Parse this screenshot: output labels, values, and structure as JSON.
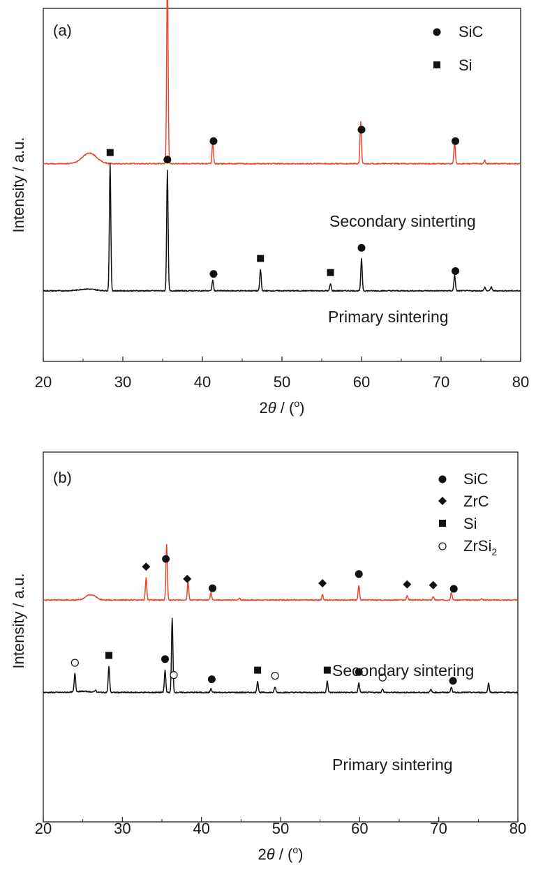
{
  "colors": {
    "secondary": "#e8472e",
    "primary": "#111111",
    "axis": "#1a1a1a"
  },
  "chart_data": [
    {
      "type": "line",
      "panel_label": "(a)",
      "xlabel_prefix": "2",
      "xlabel_symbol": "θ",
      "xlabel_suffix": " / (",
      "xlabel_unit": "o",
      "xlabel_close": ")",
      "ylabel": "Intensity / a.u.",
      "xlim": [
        20,
        80
      ],
      "xticks": [
        "20",
        "30",
        "40",
        "50",
        "60",
        "70",
        "80"
      ],
      "legend": [
        {
          "marker": "filled-circle",
          "label": "SiC"
        },
        {
          "marker": "filled-square",
          "label": "Si"
        }
      ],
      "series": [
        {
          "name": "Secondary sinterting",
          "color": "#e8472e",
          "baseline": 0.56,
          "bump": {
            "x": 25.8,
            "height": 0.03,
            "width": 0.9
          },
          "peaks": [
            {
              "x": 35.6,
              "height": 0.54
            },
            {
              "x": 41.3,
              "height": 0.06
            },
            {
              "x": 59.9,
              "height": 0.12
            },
            {
              "x": 71.7,
              "height": 0.06
            },
            {
              "x": 75.5,
              "height": 0.01
            }
          ],
          "markers": [
            {
              "x": 35.6,
              "marker": "filled-circle"
            },
            {
              "x": 41.4,
              "marker": "filled-circle"
            },
            {
              "x": 60.0,
              "marker": "filled-circle"
            },
            {
              "x": 71.8,
              "marker": "filled-circle"
            }
          ]
        },
        {
          "name": "Primary sintering",
          "color": "#111111",
          "baseline": 0.2,
          "bump": {
            "x": 25.5,
            "height": 0.005,
            "width": 1.0
          },
          "peaks": [
            {
              "x": 28.4,
              "height": 0.36
            },
            {
              "x": 35.6,
              "height": 0.34
            },
            {
              "x": 41.3,
              "height": 0.03
            },
            {
              "x": 47.3,
              "height": 0.06
            },
            {
              "x": 56.1,
              "height": 0.02
            },
            {
              "x": 60.0,
              "height": 0.09
            },
            {
              "x": 71.7,
              "height": 0.045
            },
            {
              "x": 75.5,
              "height": 0.01
            },
            {
              "x": 76.3,
              "height": 0.012
            }
          ],
          "markers": [
            {
              "x": 28.4,
              "marker": "filled-square"
            },
            {
              "x": 35.6,
              "marker": "filled-circle"
            },
            {
              "x": 41.4,
              "marker": "filled-circle"
            },
            {
              "x": 47.3,
              "marker": "filled-square"
            },
            {
              "x": 56.1,
              "marker": "filled-square"
            },
            {
              "x": 60.0,
              "marker": "filled-circle"
            },
            {
              "x": 71.8,
              "marker": "filled-circle"
            }
          ]
        }
      ]
    },
    {
      "type": "line",
      "panel_label": "(b)",
      "xlabel_prefix": "2",
      "xlabel_symbol": "θ",
      "xlabel_suffix": " / (",
      "xlabel_unit": "o",
      "xlabel_close": ")",
      "ylabel": "Intensity / a.u.",
      "xlim": [
        20,
        80
      ],
      "xticks": [
        "20",
        "30",
        "40",
        "50",
        "60",
        "70",
        "80"
      ],
      "legend": [
        {
          "marker": "filled-circle",
          "label": "SiC"
        },
        {
          "marker": "filled-diamond",
          "label": "ZrC"
        },
        {
          "marker": "filled-square",
          "label": "Si"
        },
        {
          "marker": "open-circle",
          "label": "ZrSi",
          "sub": "2"
        }
      ],
      "series": [
        {
          "name": "Secondary sintering",
          "color": "#e8472e",
          "baseline": 0.6,
          "bump": {
            "x": 26.0,
            "height": 0.015,
            "width": 0.6
          },
          "peaks": [
            {
              "x": 33.0,
              "height": 0.06
            },
            {
              "x": 35.6,
              "height": 0.15
            },
            {
              "x": 38.3,
              "height": 0.05
            },
            {
              "x": 41.2,
              "height": 0.02
            },
            {
              "x": 44.8,
              "height": 0.005
            },
            {
              "x": 55.3,
              "height": 0.015
            },
            {
              "x": 59.9,
              "height": 0.04
            },
            {
              "x": 66.0,
              "height": 0.012
            },
            {
              "x": 69.3,
              "height": 0.01
            },
            {
              "x": 71.6,
              "height": 0.02
            },
            {
              "x": 75.4,
              "height": 0.005
            }
          ],
          "markers": [
            {
              "x": 33.0,
              "marker": "filled-diamond"
            },
            {
              "x": 35.5,
              "marker": "filled-circle"
            },
            {
              "x": 38.2,
              "marker": "filled-diamond"
            },
            {
              "x": 41.4,
              "marker": "filled-circle"
            },
            {
              "x": 55.3,
              "marker": "filled-diamond"
            },
            {
              "x": 59.9,
              "marker": "filled-circle"
            },
            {
              "x": 66.0,
              "marker": "filled-diamond"
            },
            {
              "x": 69.3,
              "marker": "filled-diamond"
            },
            {
              "x": 71.9,
              "marker": "filled-circle"
            }
          ]
        },
        {
          "name": "Primary sintering",
          "color": "#111111",
          "baseline": 0.35,
          "bump": {
            "x": 25.0,
            "height": 0.003,
            "width": 1.0
          },
          "peaks": [
            {
              "x": 24.0,
              "height": 0.05
            },
            {
              "x": 26.6,
              "height": 0.006
            },
            {
              "x": 28.3,
              "height": 0.07
            },
            {
              "x": 35.4,
              "height": 0.06
            },
            {
              "x": 36.3,
              "height": 0.2
            },
            {
              "x": 41.2,
              "height": 0.01
            },
            {
              "x": 47.1,
              "height": 0.03
            },
            {
              "x": 49.3,
              "height": 0.015
            },
            {
              "x": 55.9,
              "height": 0.03
            },
            {
              "x": 59.9,
              "height": 0.025
            },
            {
              "x": 62.9,
              "height": 0.01
            },
            {
              "x": 69.0,
              "height": 0.008
            },
            {
              "x": 71.6,
              "height": 0.015
            },
            {
              "x": 76.3,
              "height": 0.025
            }
          ],
          "markers": [
            {
              "x": 24.0,
              "marker": "open-circle"
            },
            {
              "x": 28.3,
              "marker": "filled-square"
            },
            {
              "x": 35.4,
              "marker": "filled-circle"
            },
            {
              "x": 36.5,
              "marker": "open-circle"
            },
            {
              "x": 41.3,
              "marker": "filled-circle"
            },
            {
              "x": 47.1,
              "marker": "filled-square"
            },
            {
              "x": 49.3,
              "marker": "open-circle"
            },
            {
              "x": 55.9,
              "marker": "filled-square"
            },
            {
              "x": 59.9,
              "marker": "filled-circle"
            },
            {
              "x": 62.9,
              "marker": "open-circle"
            },
            {
              "x": 71.8,
              "marker": "filled-circle"
            }
          ]
        }
      ]
    }
  ]
}
